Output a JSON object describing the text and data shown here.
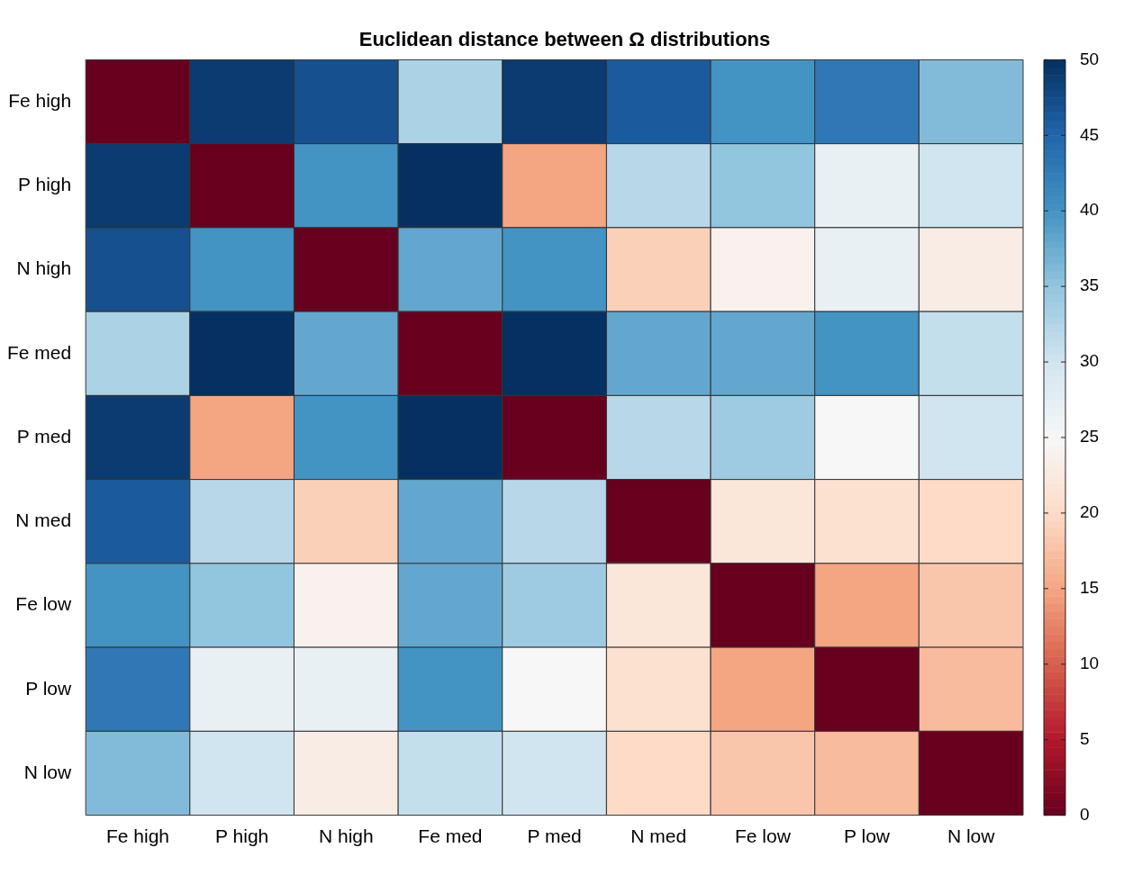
{
  "chart_data": {
    "type": "heatmap",
    "title": "Euclidean distance between Ω distributions",
    "categories": [
      "Fe high",
      "P high",
      "N high",
      "Fe med",
      "P med",
      "N med",
      "Fe low",
      "P low",
      "N low"
    ],
    "y_categories": [
      "Fe high",
      "P high",
      "N high",
      "Fe med",
      "P med",
      "N med",
      "Fe low",
      "P low",
      "N low"
    ],
    "cells": [
      [
        0,
        49,
        47,
        33,
        49,
        46,
        40,
        43,
        36
      ],
      [
        49,
        0,
        40,
        50,
        15,
        32,
        35,
        27,
        30
      ],
      [
        47,
        40,
        0,
        38,
        40,
        19,
        24,
        27,
        23
      ],
      [
        33,
        50,
        38,
        0,
        50,
        38,
        38,
        40,
        31
      ],
      [
        49,
        15,
        40,
        50,
        0,
        32,
        34,
        25,
        30
      ],
      [
        46,
        32,
        19,
        38,
        32,
        0,
        22,
        21,
        20
      ],
      [
        40,
        35,
        24,
        38,
        34,
        22,
        0,
        15,
        18
      ],
      [
        43,
        27,
        27,
        40,
        25,
        21,
        15,
        0,
        17
      ],
      [
        36,
        30,
        23,
        31,
        30,
        20,
        18,
        17,
        0
      ]
    ],
    "clim": [
      0,
      50
    ],
    "cticks": [
      0,
      5,
      10,
      15,
      20,
      25,
      30,
      35,
      40,
      45,
      50
    ]
  }
}
